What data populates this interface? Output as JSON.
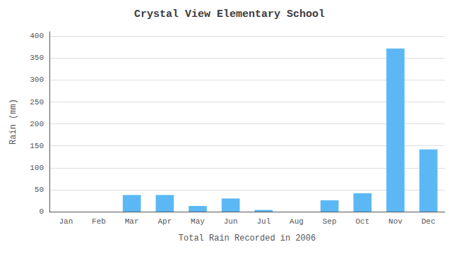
{
  "chart_data": {
    "type": "bar",
    "title": "Crystal View Elementary School",
    "xlabel": "Total Rain Recorded in 2006",
    "ylabel": "Rain (mm)",
    "categories": [
      "Jan",
      "Feb",
      "Mar",
      "Apr",
      "May",
      "Jun",
      "Jul",
      "Aug",
      "Sep",
      "Oct",
      "Nov",
      "Dec"
    ],
    "values": [
      0,
      0,
      38,
      38,
      13,
      30,
      4,
      0,
      26,
      42,
      372,
      142
    ],
    "color": "#5BB8F5",
    "ylim": [
      0,
      410
    ],
    "yticks": [
      0,
      50,
      100,
      150,
      200,
      250,
      300,
      350,
      400
    ],
    "grid": true
  }
}
